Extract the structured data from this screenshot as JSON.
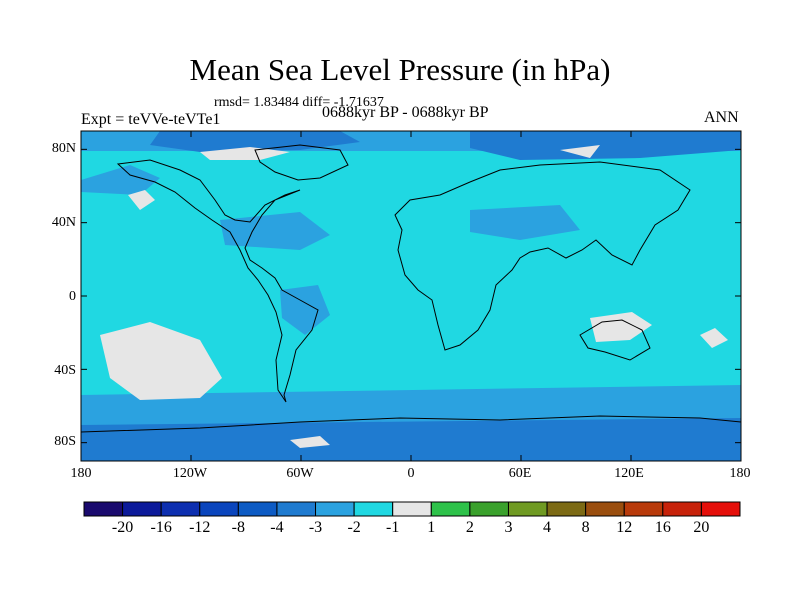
{
  "title": "Mean Sea Level Pressure (in hPa)",
  "stats": "rmsd= 1.83484 diff= -1.71637",
  "experiment": "Expt = teVVe-teVTe1",
  "period": "0688kyr BP - 0688kyr BP",
  "season": "ANN",
  "lat_labels": [
    "80N",
    "40N",
    "0",
    "40S",
    "80S"
  ],
  "lon_labels": [
    "180",
    "120W",
    "60W",
    "0",
    "60E",
    "120E",
    "180"
  ],
  "colorbar": {
    "labels": [
      "-20",
      "-16",
      "-12",
      "-8",
      "-4",
      "-3",
      "-2",
      "-1",
      "1",
      "2",
      "3",
      "4",
      "8",
      "12",
      "16",
      "20"
    ],
    "colors": [
      "#1a0a6e",
      "#0c1a9a",
      "#0d2fb0",
      "#0a45bd",
      "#0d5bc4",
      "#1f7bd0",
      "#2ba2e0",
      "#20d8e2",
      "#e6e6e6",
      "#2ec24a",
      "#3aa12c",
      "#6f9a22",
      "#7c6a14",
      "#9a4e0e",
      "#b83a0a",
      "#c7220a",
      "#e50f0a"
    ]
  },
  "field_colors": {
    "background_anomaly": "#20d8e2",
    "moderate_negative": "#2ba2e0",
    "strong_negative": "#1f7bd0",
    "near_zero": "#e6e6e6"
  }
}
